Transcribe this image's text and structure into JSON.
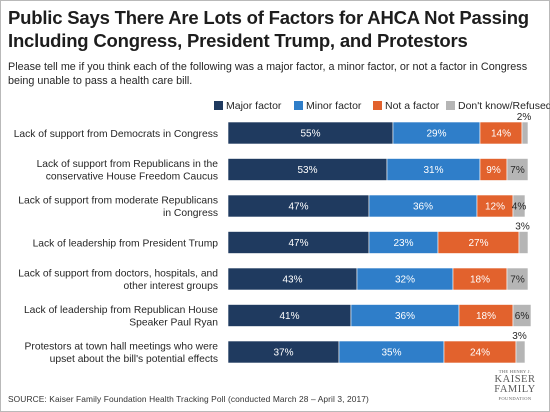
{
  "title": "Public Says There Are Lots of Factors for AHCA Not Passing Including Congress, President Trump, and Protestors",
  "subtitle": "Please tell me if you think each of the following was a major factor, a minor factor, or not a factor in Congress being unable to pass a health care bill.",
  "source": "SOURCE: Kaiser Family Foundation Health Tracking Poll (conducted March 28 – April 3, 2017)",
  "logo": {
    "line1": "THE HENRY J.",
    "line2": "KAISER",
    "line3": "FAMILY",
    "line4": "FOUNDATION"
  },
  "colors": {
    "major": "#1f3a5f",
    "minor": "#2f7ec9",
    "not": "#e2622d",
    "dont_know": "#b5b5b5"
  },
  "chart_data": {
    "type": "bar",
    "orientation": "horizontal",
    "stacked": true,
    "legend_position": "top-right",
    "xlim": [
      0,
      100
    ],
    "categories": [
      "Lack of support from Democrats in Congress",
      "Lack of support from Republicans in the conservative House Freedom Caucus",
      "Lack of support from moderate Republicans in Congress",
      "Lack of leadership from President Trump",
      "Lack of support from doctors, hospitals, and other interest groups",
      "Lack of leadership from Republican House Speaker Paul Ryan",
      "Protestors at town hall meetings who were upset about the bill's potential effects"
    ],
    "category_lines": [
      [
        "Lack of support from Democrats in Congress"
      ],
      [
        "Lack of support from Republicans in the",
        "conservative House Freedom Caucus"
      ],
      [
        "Lack of support from moderate Republicans",
        "in Congress"
      ],
      [
        "Lack of leadership from President Trump"
      ],
      [
        "Lack of support from doctors, hospitals, and",
        "other interest groups"
      ],
      [
        "Lack of leadership from Republican House",
        "Speaker Paul Ryan"
      ],
      [
        "Protestors at town hall meetings who were",
        "upset about the bill's potential effects"
      ]
    ],
    "series": [
      {
        "name": "Major factor",
        "values": [
          55,
          53,
          47,
          47,
          43,
          41,
          37
        ]
      },
      {
        "name": "Minor factor",
        "values": [
          29,
          31,
          36,
          23,
          32,
          36,
          35
        ]
      },
      {
        "name": "Not a factor",
        "values": [
          14,
          9,
          12,
          27,
          18,
          18,
          24
        ]
      },
      {
        "name": "Don't know/Refused",
        "values": [
          2,
          7,
          4,
          3,
          7,
          6,
          3
        ]
      }
    ],
    "data_label_suffix": "%"
  }
}
